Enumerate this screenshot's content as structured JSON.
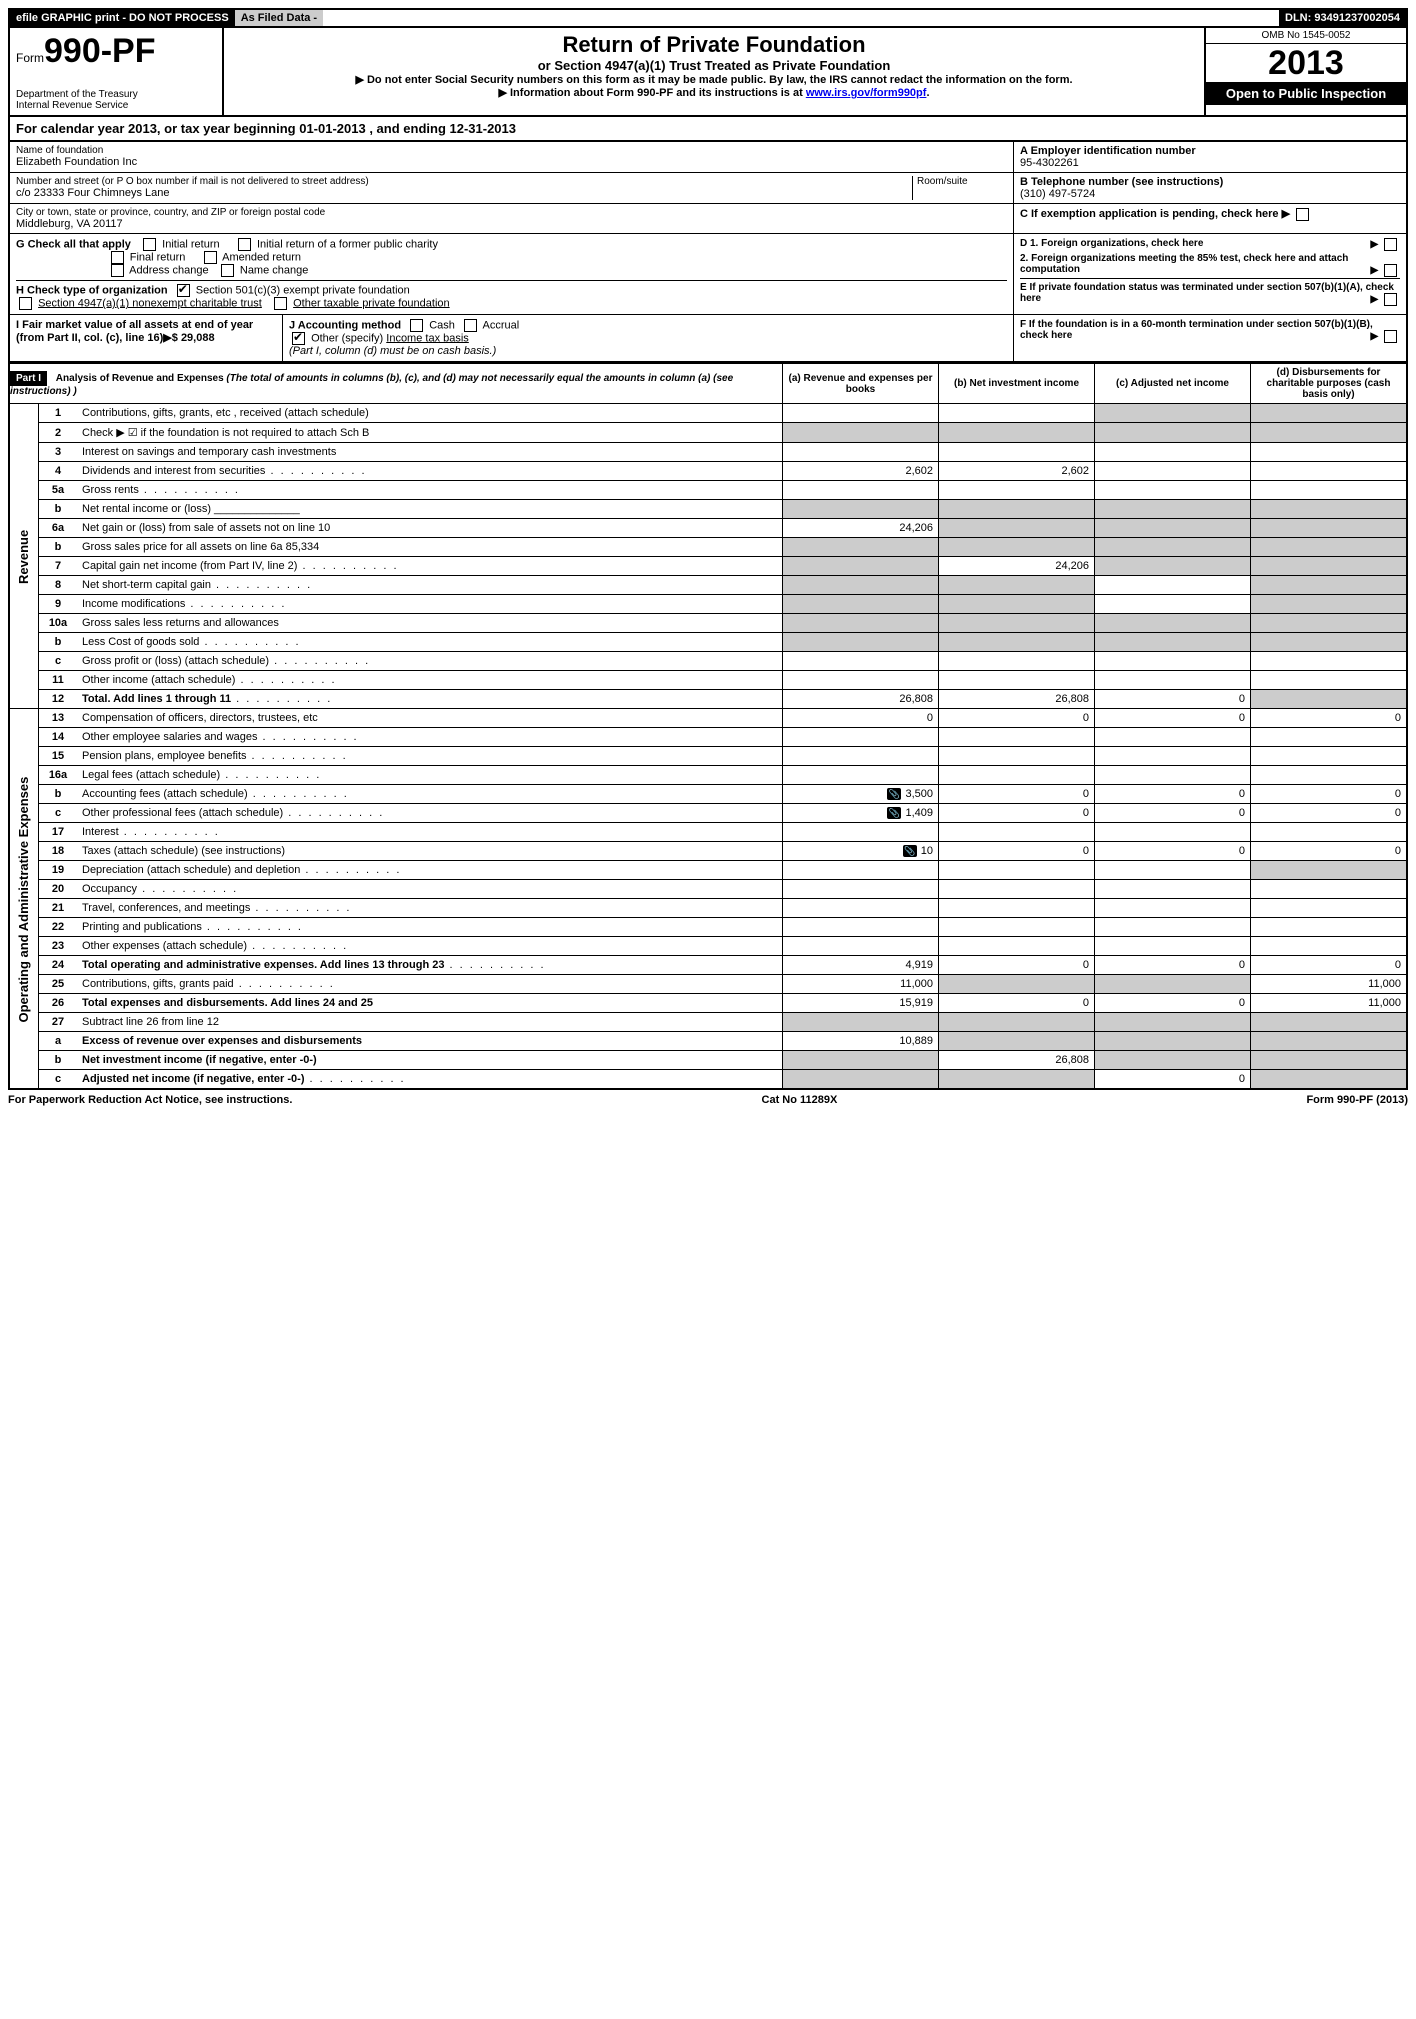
{
  "topbar": {
    "efile": "efile GRAPHIC print - DO NOT PROCESS",
    "asfiled": "As Filed Data -",
    "dln": "DLN: 93491237002054"
  },
  "header": {
    "form_prefix": "Form",
    "form_num": "990-PF",
    "dept": "Department of the Treasury",
    "irs": "Internal Revenue Service",
    "title": "Return of Private Foundation",
    "sub": "or Section 4947(a)(1) Trust Treated as Private Foundation",
    "note1": "▶ Do not enter Social Security numbers on this form as it may be made public. By law, the IRS cannot redact the information on the form.",
    "note2_pre": "▶ Information about Form 990-PF and its instructions is at ",
    "note2_link": "www.irs.gov/form990pf",
    "note2_post": ".",
    "omb": "OMB No 1545-0052",
    "year": "2013",
    "inspect": "Open to Public Inspection"
  },
  "calyear": "For calendar year 2013, or tax year beginning 01-01-2013      , and ending 12-31-2013",
  "info": {
    "name_lbl": "Name of foundation",
    "name": "Elizabeth Foundation Inc",
    "a_lbl": "A Employer identification number",
    "a_val": "95-4302261",
    "addr_lbl": "Number and street (or P O box number if mail is not delivered to street address)",
    "room_lbl": "Room/suite",
    "addr": "c/o 23333 Four Chimneys Lane",
    "b_lbl": "B Telephone number (see instructions)",
    "b_val": "(310) 497-5724",
    "city_lbl": "City or town, state or province, country, and ZIP or foreign postal code",
    "city": "Middleburg, VA 20117",
    "c_lbl": "C If exemption application is pending, check here"
  },
  "checks": {
    "g_lbl": "G Check all that apply",
    "g1": "Initial return",
    "g2": "Initial return of a former public charity",
    "g3": "Final return",
    "g4": "Amended return",
    "g5": "Address change",
    "g6": "Name change",
    "h_lbl": "H Check type of organization",
    "h1": "Section 501(c)(3) exempt private foundation",
    "h2": "Section 4947(a)(1) nonexempt charitable trust",
    "h3": "Other taxable private foundation",
    "i_lbl": "I Fair market value of all assets at end of year (from Part II, col. (c), line 16)▶$ 29,088",
    "j_lbl": "J Accounting method",
    "j1": "Cash",
    "j2": "Accrual",
    "j3": "Other (specify)",
    "j3_underline": "Income tax basis",
    "j_note": "(Part I, column (d) must be on cash basis.)",
    "d1": "D 1. Foreign organizations, check here",
    "d2": "2. Foreign organizations meeting the 85% test, check here and attach computation",
    "e": "E If private foundation status was terminated under section 507(b)(1)(A), check here",
    "f": "F If the foundation is in a 60-month termination under section 507(b)(1)(B), check here"
  },
  "part1": {
    "label": "Part I",
    "title": "Analysis of Revenue and Expenses",
    "title_note": "(The total of amounts in columns (b), (c), and (d) may not necessarily equal the amounts in column (a) (see instructions) )",
    "col_a": "(a) Revenue and expenses per books",
    "col_b": "(b) Net investment income",
    "col_c": "(c) Adjusted net income",
    "col_d": "(d) Disbursements for charitable purposes (cash basis only)"
  },
  "sections": {
    "revenue": "Revenue",
    "expenses": "Operating and Administrative Expenses"
  },
  "rows": [
    {
      "n": "1",
      "d": "Contributions, gifts, grants, etc , received (attach schedule)",
      "a": "",
      "b": "",
      "c": "",
      "e": "",
      "shade_cde": true
    },
    {
      "n": "2",
      "d": "Check ▶ ☑ if the foundation is not required to attach Sch B",
      "a": "",
      "b": "",
      "c": "",
      "e": "",
      "shade_all": true,
      "bold_not": true
    },
    {
      "n": "3",
      "d": "Interest on savings and temporary cash investments",
      "a": "",
      "b": "",
      "c": "",
      "e": ""
    },
    {
      "n": "4",
      "d": "Dividends and interest from securities",
      "dots": true,
      "a": "2,602",
      "b": "2,602",
      "c": "",
      "e": ""
    },
    {
      "n": "5a",
      "d": "Gross rents",
      "dots": true,
      "a": "",
      "b": "",
      "c": "",
      "e": ""
    },
    {
      "n": "b",
      "d": "Net rental income or (loss) ______________",
      "a": "",
      "b": "",
      "c": "",
      "e": "",
      "shade_all": true
    },
    {
      "n": "6a",
      "d": "Net gain or (loss) from sale of assets not on line 10",
      "a": "24,206",
      "b": "",
      "c": "",
      "e": "",
      "shade_bcde": true
    },
    {
      "n": "b",
      "d": "Gross sales price for all assets on line 6a                  85,334",
      "a": "",
      "b": "",
      "c": "",
      "e": "",
      "shade_all": true
    },
    {
      "n": "7",
      "d": "Capital gain net income (from Part IV, line 2)",
      "dots": true,
      "a": "",
      "b": "24,206",
      "c": "",
      "e": "",
      "shade_a": true,
      "shade_cde": true
    },
    {
      "n": "8",
      "d": "Net short-term capital gain",
      "dots": true,
      "a": "",
      "b": "",
      "c": "",
      "e": "",
      "shade_ab": true,
      "shade_de": true
    },
    {
      "n": "9",
      "d": "Income modifications",
      "dots": true,
      "a": "",
      "b": "",
      "c": "",
      "e": "",
      "shade_ab": true,
      "shade_de": true
    },
    {
      "n": "10a",
      "d": "Gross sales less returns and allowances",
      "a": "",
      "b": "",
      "c": "",
      "e": "",
      "shade_all": true
    },
    {
      "n": "b",
      "d": "Less Cost of goods sold",
      "dots": true,
      "a": "",
      "b": "",
      "c": "",
      "e": "",
      "shade_all": true
    },
    {
      "n": "c",
      "d": "Gross profit or (loss) (attach schedule)",
      "dots": true,
      "a": "",
      "b": "",
      "c": "",
      "e": ""
    },
    {
      "n": "11",
      "d": "Other income (attach schedule)",
      "dots": true,
      "a": "",
      "b": "",
      "c": "",
      "e": ""
    },
    {
      "n": "12",
      "d": "Total. Add lines 1 through 11",
      "dots": true,
      "bold": true,
      "a": "26,808",
      "b": "26,808",
      "c": "0",
      "e": "",
      "shade_de": true
    },
    {
      "n": "13",
      "d": "Compensation of officers, directors, trustees, etc",
      "a": "0",
      "b": "0",
      "c": "0",
      "e": "0"
    },
    {
      "n": "14",
      "d": "Other employee salaries and wages",
      "dots": true,
      "a": "",
      "b": "",
      "c": "",
      "e": ""
    },
    {
      "n": "15",
      "d": "Pension plans, employee benefits",
      "dots": true,
      "a": "",
      "b": "",
      "c": "",
      "e": ""
    },
    {
      "n": "16a",
      "d": "Legal fees (attach schedule)",
      "dots": true,
      "a": "",
      "b": "",
      "c": "",
      "e": ""
    },
    {
      "n": "b",
      "d": "Accounting fees (attach schedule)",
      "dots": true,
      "att": true,
      "a": "3,500",
      "b": "0",
      "c": "0",
      "e": "0"
    },
    {
      "n": "c",
      "d": "Other professional fees (attach schedule)",
      "dots": true,
      "att": true,
      "a": "1,409",
      "b": "0",
      "c": "0",
      "e": "0"
    },
    {
      "n": "17",
      "d": "Interest",
      "dots": true,
      "a": "",
      "b": "",
      "c": "",
      "e": ""
    },
    {
      "n": "18",
      "d": "Taxes (attach schedule) (see instructions)",
      "att": true,
      "a": "10",
      "b": "0",
      "c": "0",
      "e": "0"
    },
    {
      "n": "19",
      "d": "Depreciation (attach schedule) and depletion",
      "dots": true,
      "a": "",
      "b": "",
      "c": "",
      "e": "",
      "shade_de": true
    },
    {
      "n": "20",
      "d": "Occupancy",
      "dots": true,
      "a": "",
      "b": "",
      "c": "",
      "e": ""
    },
    {
      "n": "21",
      "d": "Travel, conferences, and meetings",
      "dots": true,
      "a": "",
      "b": "",
      "c": "",
      "e": ""
    },
    {
      "n": "22",
      "d": "Printing and publications",
      "dots": true,
      "a": "",
      "b": "",
      "c": "",
      "e": ""
    },
    {
      "n": "23",
      "d": "Other expenses (attach schedule)",
      "dots": true,
      "a": "",
      "b": "",
      "c": "",
      "e": ""
    },
    {
      "n": "24",
      "d": "Total operating and administrative expenses. Add lines 13 through 23",
      "dots": true,
      "bold": true,
      "a": "4,919",
      "b": "0",
      "c": "0",
      "e": "0"
    },
    {
      "n": "25",
      "d": "Contributions, gifts, grants paid",
      "dots": true,
      "a": "11,000",
      "b": "",
      "c": "",
      "e": "11,000",
      "shade_bc": true
    },
    {
      "n": "26",
      "d": "Total expenses and disbursements. Add lines 24 and 25",
      "bold": true,
      "a": "15,919",
      "b": "0",
      "c": "0",
      "e": "11,000"
    },
    {
      "n": "27",
      "d": "Subtract line 26 from line 12",
      "a": "",
      "b": "",
      "c": "",
      "e": "",
      "shade_all": true
    },
    {
      "n": "a",
      "d": "Excess of revenue over expenses and disbursements",
      "bold": true,
      "a": "10,889",
      "b": "",
      "c": "",
      "e": "",
      "shade_bcde": true
    },
    {
      "n": "b",
      "d": "Net investment income (if negative, enter -0-)",
      "bold": true,
      "a": "",
      "b": "26,808",
      "c": "",
      "e": "",
      "shade_a": true,
      "shade_cde": true
    },
    {
      "n": "c",
      "d": "Adjusted net income (if negative, enter -0-)",
      "dots": true,
      "bold": true,
      "a": "",
      "b": "",
      "c": "0",
      "e": "",
      "shade_ab": true,
      "shade_de": true
    }
  ],
  "footer": {
    "left": "For Paperwork Reduction Act Notice, see instructions.",
    "mid": "Cat No 11289X",
    "right": "Form 990-PF (2013)"
  }
}
